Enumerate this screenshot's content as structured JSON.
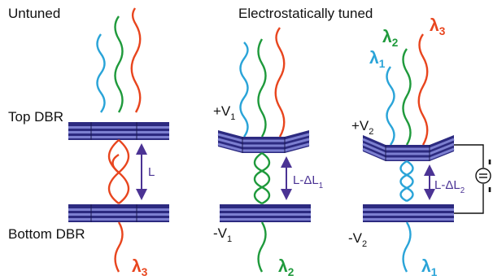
{
  "labels": {
    "untuned": "Untuned",
    "tuned": "Electrostatically tuned",
    "top_dbr": "Top DBR",
    "bottom_dbr": "Bottom DBR"
  },
  "panels": {
    "untuned": {
      "cavity": "L",
      "output": "λ3"
    },
    "tuned_1": {
      "top_voltage": "+V1",
      "bottom_voltage": "-V1",
      "cavity": "L-ΔL1",
      "output": "λ2"
    },
    "tuned_2": {
      "top_voltage": "+V2",
      "bottom_voltage": "-V2",
      "cavity": "L-ΔL2",
      "input_1": "λ1",
      "input_2": "λ2",
      "input_3": "λ3",
      "output": "λ1"
    }
  },
  "colors": {
    "lambda1": "#2aa4d8",
    "lambda2": "#1f9a3c",
    "lambda3": "#e8451e",
    "mirror_dark": "#2c2a80",
    "mirror_light": "#7c7fd0",
    "arrow": "#4b3394"
  },
  "icons": {
    "voltage_source": "ac-voltage-source-icon"
  }
}
